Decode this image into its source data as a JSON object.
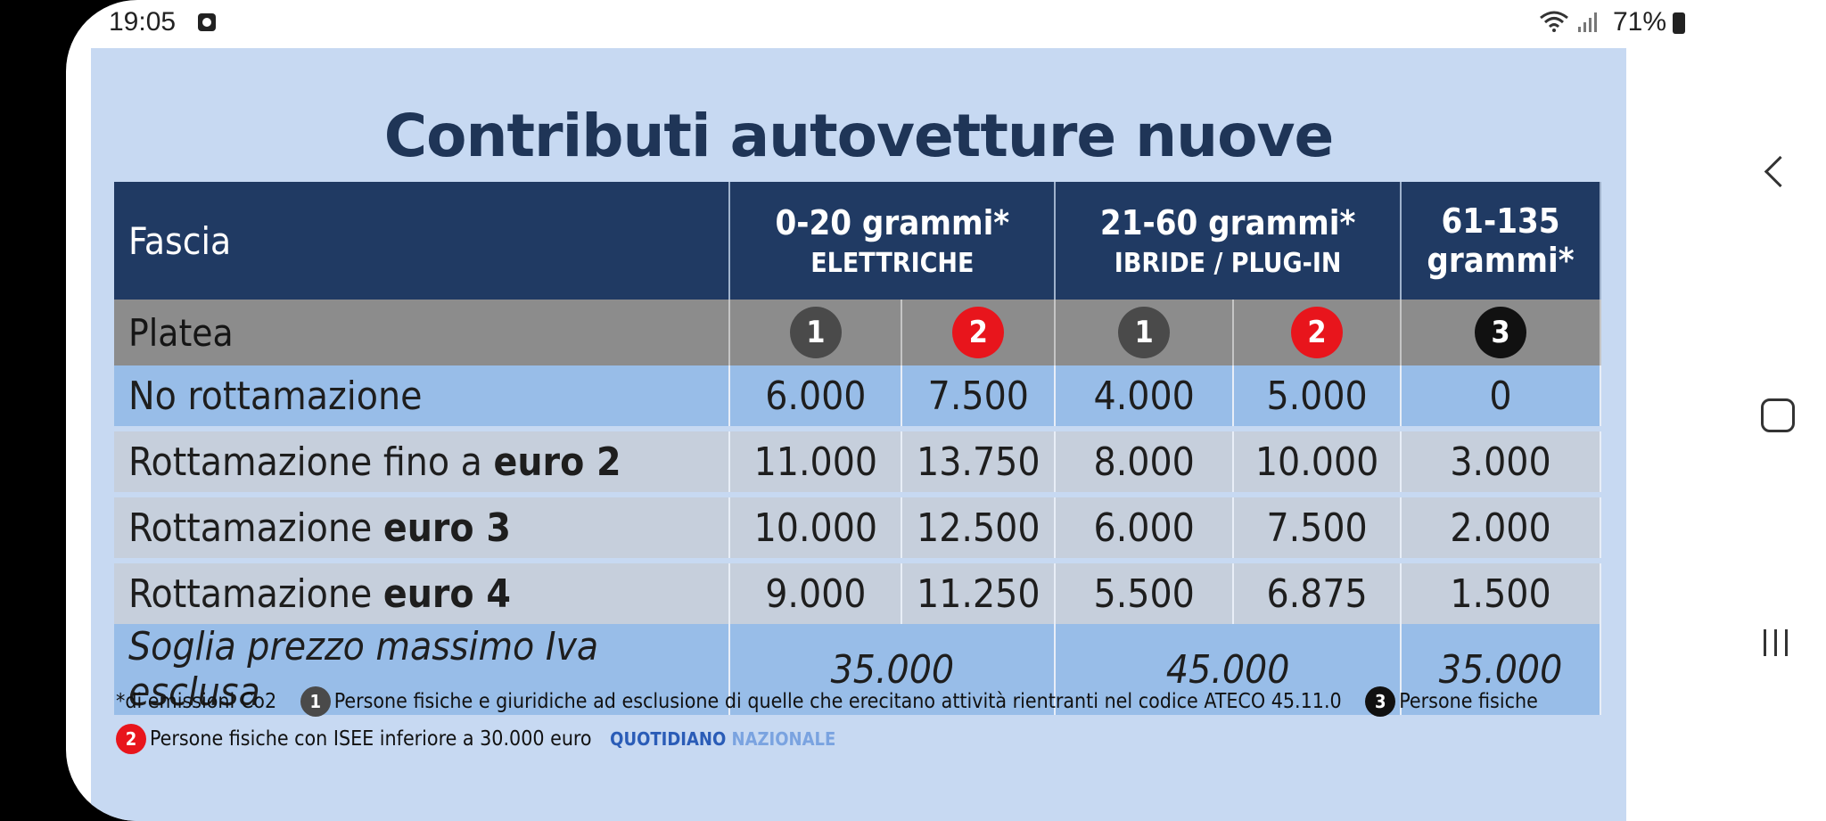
{
  "status_bar": {
    "time": "19:05",
    "battery": "71%"
  },
  "card": {
    "title": "Contributi autovetture nuove",
    "header": {
      "fascia": "Fascia",
      "group1_title": "0-20 grammi*",
      "group1_sub": "ELETTRICHE",
      "group2_title": "21-60 grammi*",
      "group2_sub": "IBRIDE / PLUG-IN",
      "group3_line1": "61-135",
      "group3_line2": "grammi*"
    },
    "platea": {
      "label": "Platea",
      "badges": [
        "1",
        "2",
        "1",
        "2",
        "3"
      ]
    },
    "rows": [
      {
        "label": "No rottamazione",
        "label_bold": "",
        "values": [
          "6.000",
          "7.500",
          "4.000",
          "5.000",
          "0"
        ]
      },
      {
        "label": "Rottamazione fino a ",
        "label_bold": "euro 2",
        "values": [
          "11.000",
          "13.750",
          "8.000",
          "10.000",
          "3.000"
        ]
      },
      {
        "label": "Rottamazione ",
        "label_bold": "euro 3",
        "values": [
          "10.000",
          "12.500",
          "6.000",
          "7.500",
          "2.000"
        ]
      },
      {
        "label": "Rottamazione ",
        "label_bold": "euro 4",
        "values": [
          "9.000",
          "11.250",
          "5.500",
          "6.875",
          "1.500"
        ]
      }
    ],
    "threshold": {
      "label": "Soglia prezzo massimo Iva esclusa",
      "values": [
        "35.000",
        "45.000",
        "35.000"
      ]
    },
    "footnotes": {
      "co2": "*di emissioni Co2",
      "note1_num": "1",
      "note1": "Persone fisiche e giuridiche ad esclusione di quelle che erecitano attività rientranti nel codice ATECO 45.11.0",
      "note3_num": "3",
      "note3": "Persone fisiche",
      "note2_num": "2",
      "note2": "Persone fisiche con ISEE inferiore a 30.000 euro",
      "brand1": "QUOTIDIANO",
      "brand2": "NAZIONALE"
    }
  },
  "colors": {
    "header_bg": "#203a63",
    "card_bg": "#c7d9f2",
    "row_blue": "#98bde8",
    "row_gray": "#c6cfdc",
    "badge_red": "#e8151c"
  }
}
